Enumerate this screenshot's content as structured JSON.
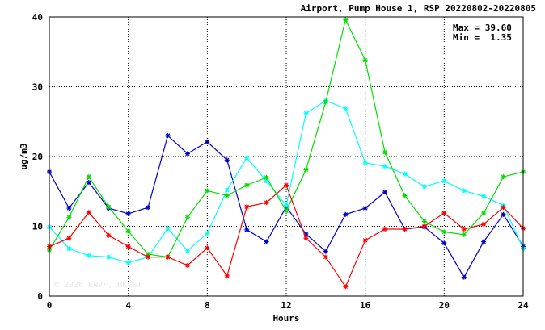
{
  "chart_data": {
    "type": "line",
    "title": "Airport, Pump House 1, RSP 20220802-20220805",
    "xlabel": "Hours",
    "ylabel": "ug/m3",
    "xlim": [
      0,
      24
    ],
    "ylim": [
      0,
      40
    ],
    "xticks": [
      0,
      4,
      8,
      12,
      16,
      20,
      24
    ],
    "yticks": [
      0,
      10,
      20,
      30,
      40
    ],
    "grid": true,
    "stats": {
      "max_label": "Max = 39.60",
      "min_label": "Min =  1.35"
    },
    "watermark": "© 2026  ENVF, HKUST",
    "x": [
      0,
      1,
      2,
      3,
      4,
      5,
      6,
      7,
      8,
      9,
      10,
      11,
      12,
      13,
      14,
      15,
      16,
      17,
      18,
      19,
      20,
      21,
      22,
      23,
      24
    ],
    "series": [
      {
        "color": "#0000cc",
        "values": [
          17.8,
          12.6,
          16.3,
          12.6,
          11.8,
          12.7,
          23.0,
          20.4,
          22.1,
          19.5,
          9.5,
          7.8,
          12.8,
          8.9,
          6.4,
          11.7,
          12.6,
          14.9,
          9.6,
          9.9,
          7.6,
          2.7,
          7.8,
          11.7,
          7.1
        ]
      },
      {
        "color": "#00ffff",
        "values": [
          9.9,
          6.8,
          5.8,
          5.6,
          4.8,
          5.6,
          9.7,
          6.5,
          9.0,
          15.2,
          19.8,
          16.5,
          13.0,
          26.2,
          28.0,
          26.9,
          19.1,
          18.6,
          17.5,
          15.7,
          16.5,
          15.1,
          14.3,
          13.0,
          6.8
        ]
      },
      {
        "color": "#00e000",
        "values": [
          6.6,
          11.3,
          17.1,
          12.8,
          9.3,
          6.0,
          5.6,
          11.3,
          15.1,
          14.4,
          15.9,
          17.0,
          12.2,
          18.1,
          27.8,
          39.6,
          33.8,
          20.6,
          14.4,
          10.7,
          9.2,
          8.8,
          11.9,
          17.1,
          17.8
        ]
      },
      {
        "color": "#ff0000",
        "values": [
          7.1,
          8.3,
          12.0,
          8.7,
          7.1,
          5.6,
          5.6,
          4.4,
          6.9,
          2.9,
          12.8,
          13.4,
          15.9,
          8.3,
          5.6,
          1.35,
          8.0,
          9.6,
          9.6,
          10.0,
          11.9,
          9.6,
          10.3,
          12.7,
          9.7
        ]
      }
    ]
  }
}
